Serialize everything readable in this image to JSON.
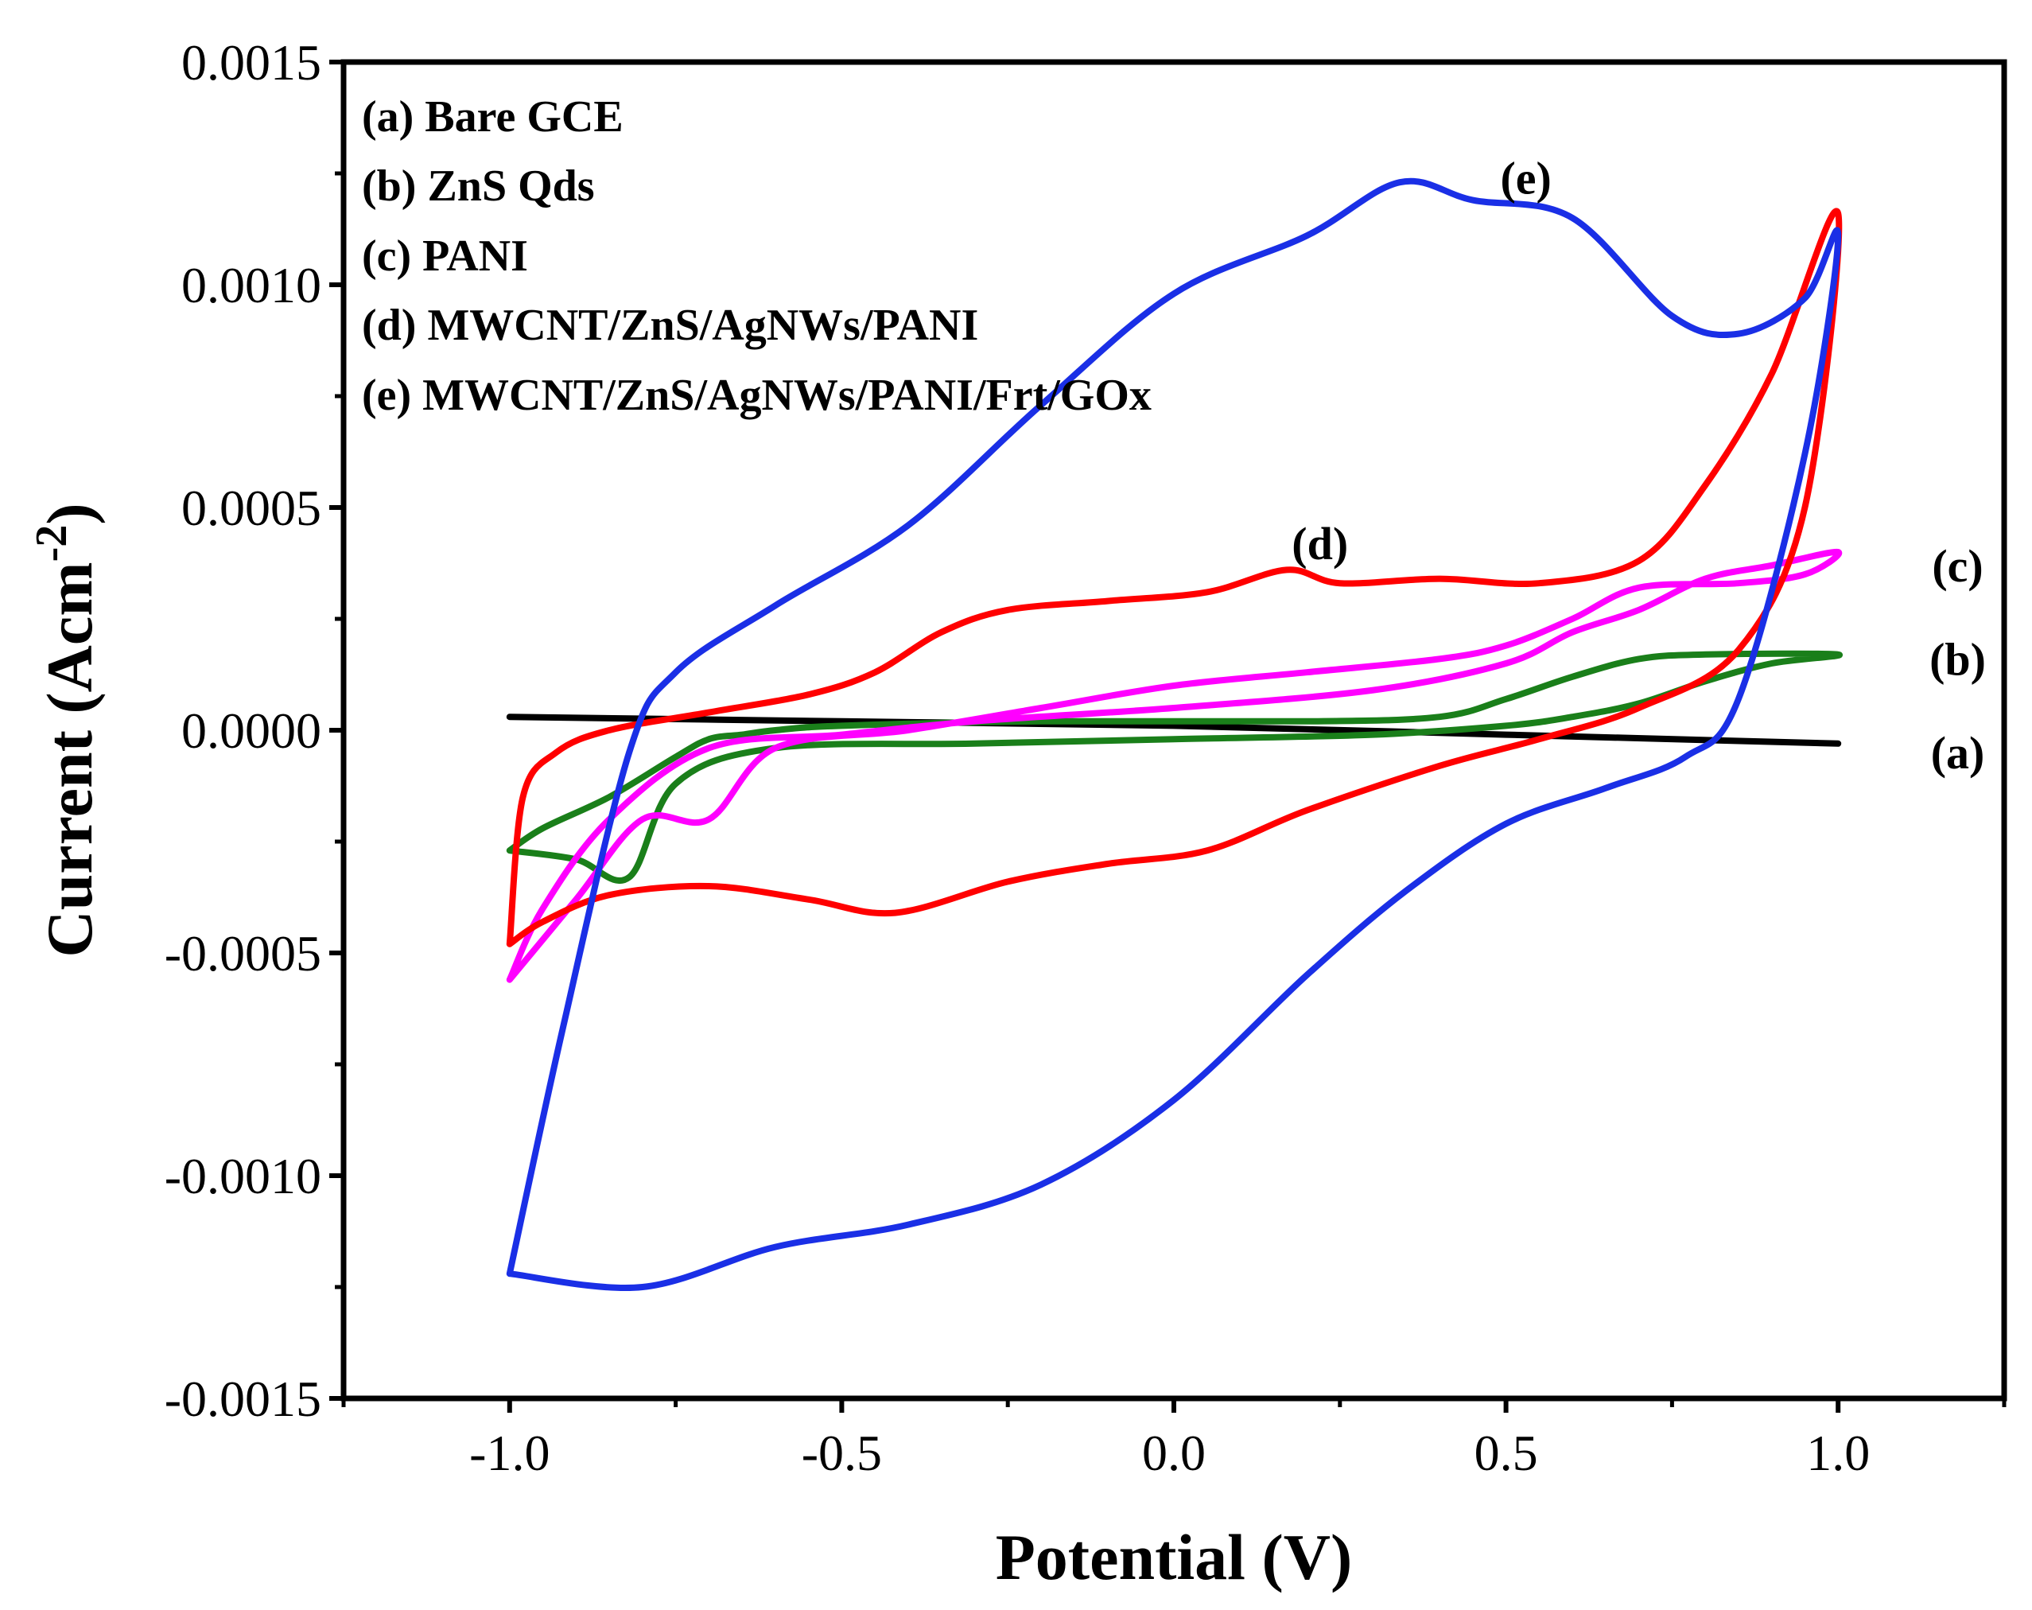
{
  "chart_data": {
    "type": "line",
    "xlabel": "Potential (V)",
    "ylabel_main": "Current (Acm",
    "ylabel_sup": "-2",
    "ylabel_close": ")",
    "xlim": [
      -1.25,
      1.25
    ],
    "ylim": [
      -0.0015,
      0.0015
    ],
    "xticks": [
      -1.0,
      -0.5,
      0.0,
      0.5,
      1.0
    ],
    "xtick_labels": [
      "-1.0",
      "-0.5",
      "0.0",
      "0.5",
      "1.0"
    ],
    "yticks": [
      -0.0015,
      -0.001,
      -0.0005,
      0,
      0.0005,
      0.001,
      0.0015
    ],
    "ytick_labels": [
      "-0.0015",
      "-0.0010",
      "-0.0005",
      "0.0000",
      "0.0005",
      "0.0010",
      "0.0015"
    ],
    "grid": false,
    "legend_position": "top-left",
    "legend": [
      "(a) Bare GCE",
      "(b) ZnS Qds",
      "(c) PANI",
      "(d) MWCNT/ZnS/AgNWs/PANI",
      "(e) MWCNT/ZnS/AgNWs/PANI/Frt/GOx"
    ],
    "series": [
      {
        "name": "(a)",
        "color": "#000000",
        "x": [
          -1.0,
          -0.5,
          0.0,
          0.5,
          1.0,
          0.5,
          0.0,
          -0.5,
          -1.0
        ],
        "y": [
          3e-05,
          2e-05,
          1e-05,
          -1e-05,
          -3e-05,
          -1e-05,
          1e-05,
          2e-05,
          3e-05
        ]
      },
      {
        "name": "(b)",
        "color": "#1a7f1a",
        "x": [
          -1.0,
          -0.95,
          -0.85,
          -0.75,
          -0.7,
          -0.65,
          -0.6,
          -0.5,
          -0.2,
          0.2,
          0.4,
          0.5,
          0.6,
          0.7,
          0.8,
          1.0,
          0.9,
          0.8,
          0.7,
          0.6,
          0.5,
          0.3,
          0.0,
          -0.3,
          -0.6,
          -0.75,
          -0.82,
          -0.9,
          -1.0
        ],
        "y": [
          -0.00027,
          -0.00022,
          -0.00015,
          -6e-05,
          -2e-05,
          -1e-05,
          0.0,
          1e-05,
          2e-05,
          2e-05,
          3e-05,
          7e-05,
          0.00012,
          0.00016,
          0.00017,
          0.00017,
          0.00015,
          0.00011,
          6e-05,
          3e-05,
          1e-05,
          -1e-05,
          -2e-05,
          -3e-05,
          -4e-05,
          -0.00012,
          -0.00033,
          -0.00029,
          -0.00027
        ]
      },
      {
        "name": "(c)",
        "color": "#ff00ff",
        "x": [
          -1.0,
          -0.95,
          -0.85,
          -0.7,
          -0.5,
          -0.3,
          0.0,
          0.3,
          0.5,
          0.6,
          0.7,
          0.8,
          0.9,
          1.0,
          0.95,
          0.85,
          0.7,
          0.6,
          0.5,
          0.4,
          0.2,
          0.0,
          -0.2,
          -0.4,
          -0.6,
          -0.7,
          -0.8,
          -0.9,
          -1.0
        ],
        "y": [
          -0.00056,
          -0.0004,
          -0.0002,
          -4e-05,
          -1e-05,
          2e-05,
          5e-05,
          9e-05,
          0.00015,
          0.00022,
          0.00027,
          0.00034,
          0.00037,
          0.0004,
          0.00035,
          0.00033,
          0.00032,
          0.00025,
          0.00019,
          0.00016,
          0.00013,
          0.0001,
          5e-05,
          0.0,
          -4e-05,
          -0.0002,
          -0.0002,
          -0.00038,
          -0.00056
        ]
      },
      {
        "name": "(d)",
        "color": "#ff0000",
        "x": [
          -1.0,
          -0.98,
          -0.93,
          -0.85,
          -0.7,
          -0.55,
          -0.45,
          -0.35,
          -0.25,
          -0.1,
          0.05,
          0.17,
          0.25,
          0.4,
          0.55,
          0.7,
          0.8,
          0.9,
          1.0,
          0.95,
          0.85,
          0.7,
          0.55,
          0.4,
          0.2,
          0.05,
          -0.1,
          -0.25,
          -0.42,
          -0.55,
          -0.7,
          -0.85,
          -0.95,
          -1.0
        ],
        "y": [
          -0.00048,
          -0.00015,
          -5e-05,
          0.0,
          4e-05,
          8e-05,
          0.00013,
          0.00022,
          0.00027,
          0.00029,
          0.00031,
          0.00036,
          0.00033,
          0.00034,
          0.00033,
          0.00038,
          0.00055,
          0.0008,
          0.00116,
          0.0005,
          0.00018,
          5e-05,
          -2e-05,
          -8e-05,
          -0.00018,
          -0.00027,
          -0.0003,
          -0.00034,
          -0.00041,
          -0.00038,
          -0.00035,
          -0.00037,
          -0.00043,
          -0.00048
        ]
      },
      {
        "name": "(e)",
        "color": "#1a2fe6",
        "x": [
          -1.0,
          -0.92,
          -0.82,
          -0.75,
          -0.6,
          -0.4,
          -0.2,
          0.0,
          0.2,
          0.34,
          0.45,
          0.6,
          0.75,
          0.85,
          0.95,
          1.0,
          0.95,
          0.85,
          0.77,
          0.65,
          0.5,
          0.35,
          0.2,
          0.0,
          -0.2,
          -0.4,
          -0.6,
          -0.8,
          -1.0
        ],
        "y": [
          -0.00122,
          -0.00067,
          -5e-05,
          0.00013,
          0.00028,
          0.00046,
          0.00073,
          0.00098,
          0.00111,
          0.00123,
          0.00119,
          0.00115,
          0.00093,
          0.00089,
          0.00097,
          0.00111,
          0.00062,
          7e-05,
          -6e-05,
          -0.00013,
          -0.00021,
          -0.00036,
          -0.00055,
          -0.00083,
          -0.00102,
          -0.00111,
          -0.00116,
          -0.00125,
          -0.00122
        ]
      }
    ],
    "curve_labels": [
      {
        "text": "(a)",
        "x": 1.18,
        "y": -5e-05
      },
      {
        "text": "(b)",
        "x": 1.18,
        "y": 0.00016
      },
      {
        "text": "(c)",
        "x": 1.18,
        "y": 0.00037
      },
      {
        "text": "(d)",
        "x": 0.22,
        "y": 0.00042
      },
      {
        "text": "(e)",
        "x": 0.53,
        "y": 0.00124
      }
    ]
  }
}
